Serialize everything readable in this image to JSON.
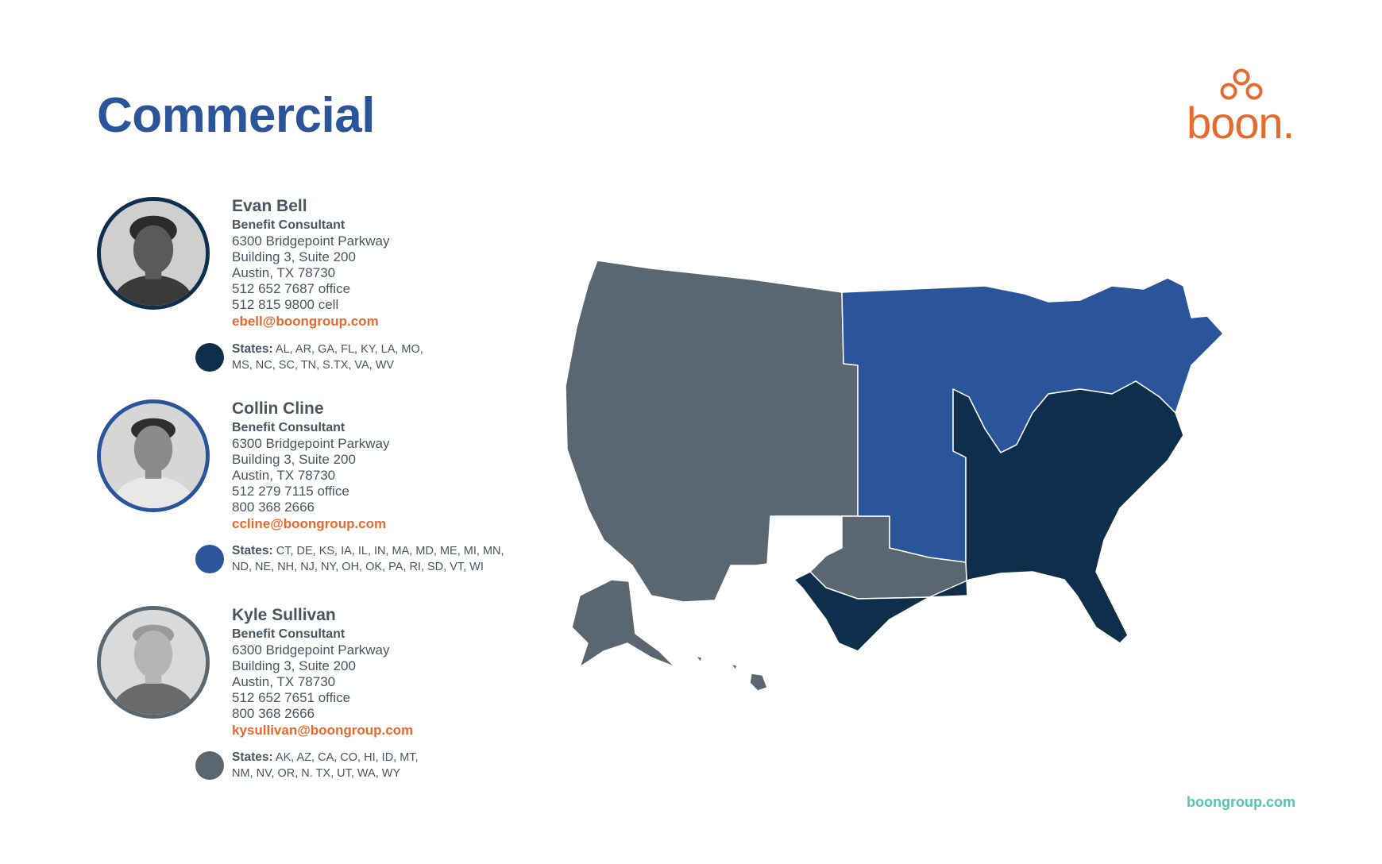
{
  "page": {
    "title": "Commercial",
    "logo_text": "boon.",
    "footer_url": "boongroup.com"
  },
  "colors": {
    "title": "#2b559a",
    "accent_orange": "#e8692d",
    "footer_teal": "#55c3b6",
    "region_dark_navy": "#0e2f4c",
    "region_blue": "#2b559a",
    "region_gray": "#5a6670"
  },
  "consultants": [
    {
      "name": "Evan Bell",
      "role": "Benefit Consultant",
      "address1": "6300 Bridgepoint Parkway",
      "address2": "Building 3, Suite 200",
      "city": "Austin, TX 78730",
      "phone1": "512 652 7687 office",
      "phone2": "512 815 9800 cell",
      "email": "ebell@boongroup.com",
      "states_label": "States:",
      "states_line1": " AL, AR, GA, FL, KY, LA, MO,",
      "states_line2": "MS, NC, SC, TN, S.TX, VA, WV",
      "region_color": "#0e2f4c"
    },
    {
      "name": "Collin Cline",
      "role": "Benefit Consultant",
      "address1": "6300 Bridgepoint Parkway",
      "address2": "Building 3, Suite 200",
      "city": "Austin, TX 78730",
      "phone1": "512 279 7115 office",
      "phone2": "800 368 2666",
      "email": "ccline@boongroup.com",
      "states_label": "States:",
      "states_line1": " CT, DE, KS, IA, IL, IN, MA, MD, ME, MI, MN,",
      "states_line2": "ND, NE, NH, NJ, NY, OH, OK, PA, RI, SD, VT, WI",
      "region_color": "#2b559a"
    },
    {
      "name": "Kyle Sullivan",
      "role": "Benefit Consultant",
      "address1": "6300 Bridgepoint Parkway",
      "address2": "Building 3, Suite 200",
      "city": "Austin, TX 78730",
      "phone1": "512 652 7651 office",
      "phone2": "800 368 2666",
      "email": "kysullivan@boongroup.com",
      "states_label": "States:",
      "states_line1": " AK, AZ, CA, CO, HI, ID, MT,",
      "states_line2": "NM, NV, OR, N. TX, UT, WA, WY",
      "region_color": "#5a6670"
    }
  ]
}
